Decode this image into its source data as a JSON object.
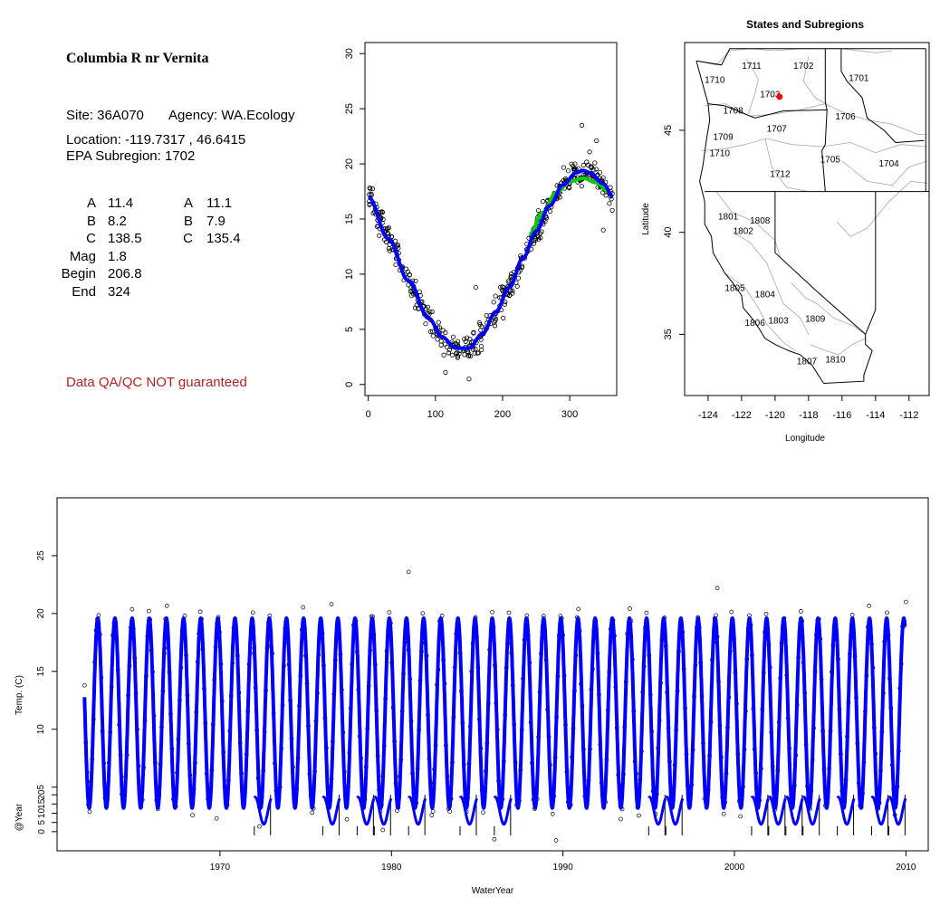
{
  "site": {
    "title": "Columbia R nr Vernita",
    "site_line": "Site: 36A070",
    "agency_line": "Agency: WA.Ecology",
    "location_line": "Location: -119.7317 , 46.6415",
    "subregion_line": "EPA Subregion: 1702",
    "params_left": [
      {
        "name": "A",
        "value": "11.4"
      },
      {
        "name": "B",
        "value": "8.2"
      },
      {
        "name": "C",
        "value": "138.5"
      },
      {
        "name": "Mag",
        "value": "1.8"
      },
      {
        "name": "Begin",
        "value": "206.8"
      },
      {
        "name": "End",
        "value": "324"
      }
    ],
    "params_right": [
      {
        "name": "A",
        "value": "11.1"
      },
      {
        "name": "B",
        "value": "7.9"
      },
      {
        "name": "C",
        "value": "135.4"
      }
    ],
    "qa_note": "Data QA/QC NOT guaranteed",
    "qa_color": "#b22222"
  },
  "chart_data": [
    {
      "type": "scatter",
      "title": "",
      "xlabel": "",
      "ylabel": "",
      "xlim": [
        -5,
        370
      ],
      "ylim": [
        -1,
        31
      ],
      "x_ticks": [
        "0",
        "100",
        "200",
        "300"
      ],
      "y_ticks": [
        "0",
        "5",
        "10",
        "15",
        "20",
        "25",
        "30"
      ],
      "series": [
        {
          "role": "observations",
          "style": "open-circle",
          "color": "#000000"
        },
        {
          "role": "fit",
          "style": "line",
          "color": "#0000ff",
          "x": [
            0,
            30,
            60,
            90,
            110,
            130,
            150,
            170,
            190,
            210,
            230,
            250,
            270,
            290,
            310,
            320,
            330,
            350,
            365
          ],
          "y": [
            17.0,
            13.2,
            9.4,
            6.0,
            4.3,
            3.3,
            3.3,
            4.6,
            6.6,
            8.8,
            11.4,
            13.9,
            16.2,
            18.1,
            19.2,
            19.4,
            19.2,
            18.2,
            17.0
          ]
        },
        {
          "role": "fit-alt",
          "style": "line",
          "color": "#00cc00",
          "x": [
            240,
            260,
            280,
            300,
            320,
            340,
            355,
            365
          ],
          "y": [
            13.6,
            15.6,
            17.4,
            18.4,
            18.7,
            18.3,
            17.6,
            17.0
          ]
        }
      ]
    },
    {
      "type": "map",
      "title": "States and Subregions",
      "xlabel": "Longitude",
      "ylabel": "Latitude",
      "xlim": [
        -125.4,
        -110.8
      ],
      "ylim": [
        32,
        49.3
      ],
      "x_ticks": [
        "-124",
        "-122",
        "-120",
        "-118",
        "-116",
        "-114",
        "-112"
      ],
      "y_ticks": [
        "35",
        "40",
        "45"
      ],
      "regions": [
        {
          "label": "1711",
          "lon": -121.4,
          "lat": 48.2
        },
        {
          "label": "1702",
          "lon": -118.3,
          "lat": 48.2
        },
        {
          "label": "1710",
          "lon": -123.6,
          "lat": 47.5
        },
        {
          "label": "1701",
          "lon": -115.0,
          "lat": 47.6
        },
        {
          "label": "1703",
          "lon": -120.3,
          "lat": 46.8
        },
        {
          "label": "1708",
          "lon": -122.5,
          "lat": 46.0
        },
        {
          "label": "1706",
          "lon": -115.8,
          "lat": 45.7
        },
        {
          "label": "1707",
          "lon": -119.9,
          "lat": 45.1
        },
        {
          "label": "1709",
          "lon": -123.1,
          "lat": 44.7
        },
        {
          "label": "1710",
          "lon": -123.3,
          "lat": 43.9
        },
        {
          "label": "1705",
          "lon": -116.7,
          "lat": 43.6
        },
        {
          "label": "1704",
          "lon": -113.2,
          "lat": 43.4
        },
        {
          "label": "1712",
          "lon": -119.7,
          "lat": 42.9
        },
        {
          "label": "1801",
          "lon": -122.8,
          "lat": 40.8
        },
        {
          "label": "1808",
          "lon": -120.9,
          "lat": 40.6
        },
        {
          "label": "1802",
          "lon": -121.9,
          "lat": 40.1
        },
        {
          "label": "1805",
          "lon": -122.4,
          "lat": 37.3
        },
        {
          "label": "1804",
          "lon": -120.6,
          "lat": 37.0
        },
        {
          "label": "1809",
          "lon": -117.6,
          "lat": 35.8
        },
        {
          "label": "1806",
          "lon": -121.2,
          "lat": 35.6
        },
        {
          "label": "1803",
          "lon": -119.8,
          "lat": 35.7
        },
        {
          "label": "1807",
          "lon": -118.1,
          "lat": 33.7
        },
        {
          "label": "1810",
          "lon": -116.4,
          "lat": 33.8
        }
      ],
      "site": {
        "lon": -119.7317,
        "lat": 46.6415,
        "color": "#ff0000"
      }
    },
    {
      "type": "line",
      "title": "",
      "xlabel": "WaterYear",
      "ylabel": "Temp. (C)",
      "xlim": [
        1960.5,
        2011.3
      ],
      "ylim": [
        -0.5,
        30
      ],
      "x_ticks": [
        "1970",
        "1980",
        "1990",
        "2000",
        "2010"
      ],
      "y_ticks": [
        "5",
        "10",
        "15",
        "20",
        "25"
      ],
      "fit": {
        "start": 1962.1,
        "end": 2009.95,
        "mean": 11.4,
        "amplitude": 8.2,
        "peak_day": 320,
        "color": "#0000ff"
      },
      "observation_outliers": [
        {
          "x": 1981.0,
          "y": 23.6
        },
        {
          "x": 1999.0,
          "y": 22.2
        },
        {
          "x": 1976.5,
          "y": 20.8
        },
        {
          "x": 2010.0,
          "y": 21.0
        },
        {
          "x": 1989.6,
          "y": 0.4
        },
        {
          "x": 1986.0,
          "y": 0.5
        },
        {
          "x": 1972.3,
          "y": 1.6
        },
        {
          "x": 1969.8,
          "y": 2.3
        },
        {
          "x": 1979.5,
          "y": 1.3
        }
      ],
      "inset": {
        "ylabel": "@Year",
        "y_ticks": [
          "0",
          "5",
          "10",
          "15",
          "20"
        ],
        "ylim": [
          -3,
          23
        ],
        "years": [
          1972,
          1976,
          1978,
          1979,
          1981,
          1984,
          1986,
          1995,
          1996,
          2001,
          2002,
          2003,
          2004,
          2006,
          2008,
          2009
        ]
      }
    }
  ]
}
